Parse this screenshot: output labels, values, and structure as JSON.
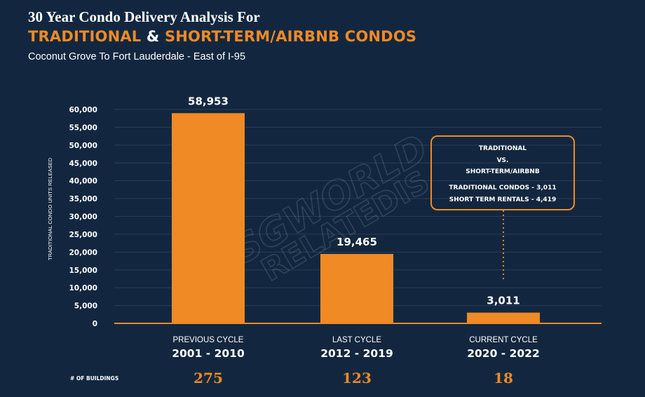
{
  "header": {
    "title_line1": "30 Year Condo Delivery Analysis For",
    "title_part1": "TRADITIONAL",
    "title_amp": " & ",
    "title_part2": "SHORT-TERM/AIRBNB CONDOS",
    "subtitle": "Coconut Grove To Fort Lauderdale - East of I-95"
  },
  "chart_data": {
    "type": "bar",
    "categories": [
      "PREVIOUS CYCLE",
      "LAST CYCLE",
      "CURRENT CYCLE"
    ],
    "category_years": [
      "2001 - 2010",
      "2012 - 2019",
      "2020 - 2022"
    ],
    "values": [
      58953,
      19465,
      3011
    ],
    "value_labels": [
      "58,953",
      "19,465",
      "3,011"
    ],
    "ylabel": "TRADITIONAL CONDO UNITS RELEASED",
    "ylim": [
      0,
      60000
    ],
    "yticks": [
      0,
      5000,
      10000,
      15000,
      20000,
      25000,
      30000,
      35000,
      40000,
      45000,
      50000,
      55000,
      60000
    ],
    "ytick_labels": [
      "0",
      "5,000",
      "10,000",
      "15,000",
      "20,000",
      "25,000",
      "30,000",
      "35,000",
      "40,000",
      "45,000",
      "50,000",
      "55,000",
      "60,000"
    ],
    "grid": true,
    "bar_color": "#f08a24"
  },
  "buildings": {
    "label": "# OF BUILDINGS",
    "counts": [
      "275",
      "123",
      "18"
    ]
  },
  "callout": {
    "line1": "TRADITIONAL",
    "line2": "VS.",
    "line3": "SHORT-TERM/AIRBNB",
    "line4": "TRADITIONAL CONDOS - 3,011",
    "line5": "SHORT TERM RENTALS - 4,419"
  },
  "watermark": {
    "text1": "SGWORLD",
    "text2": "RELATEDIS"
  },
  "colors": {
    "background": "#12273f",
    "accent": "#f08a24",
    "grid": "#2b3d54",
    "text": "#ffffff"
  }
}
